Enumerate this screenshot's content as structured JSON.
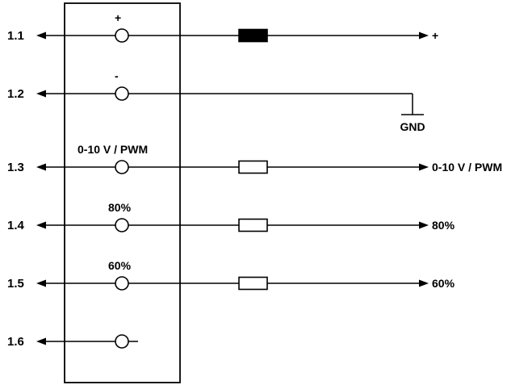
{
  "pins": [
    {
      "id": "1.1",
      "top_label": "+",
      "output_label": "+",
      "component": "filled"
    },
    {
      "id": "1.2",
      "top_label": "-",
      "output_label": "GND",
      "component": "ground"
    },
    {
      "id": "1.3",
      "top_label": "0-10 V / PWM",
      "output_label": "0-10 V / PWM",
      "component": "resistor"
    },
    {
      "id": "1.4",
      "top_label": "80%",
      "output_label": "80%",
      "component": "resistor"
    },
    {
      "id": "1.5",
      "top_label": "60%",
      "output_label": "60%",
      "component": "resistor"
    },
    {
      "id": "1.6",
      "top_label": "",
      "output_label": "",
      "component": "none"
    }
  ],
  "colors": {
    "line": "#000000",
    "background": "#ffffff"
  }
}
